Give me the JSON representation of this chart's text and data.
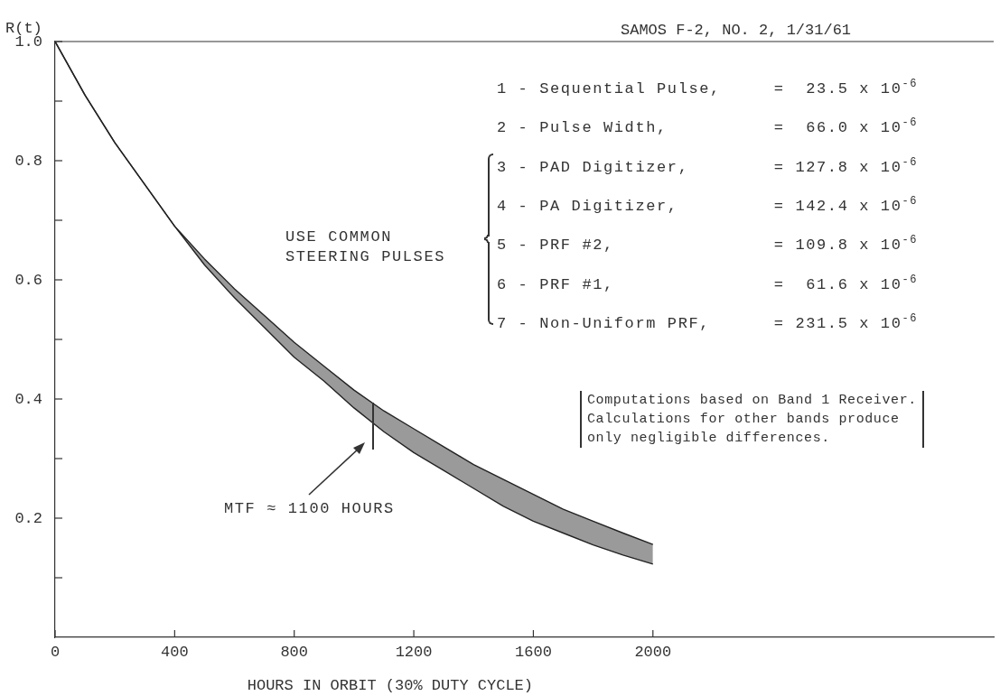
{
  "chart_data": {
    "type": "line",
    "title": "SAMOS F-2, NO. 2, 1/31/61",
    "xlabel": "HOURS IN ORBIT (30% DUTY CYCLE)",
    "ylabel": "R(t)",
    "x": [
      0,
      100,
      200,
      300,
      400,
      500,
      600,
      700,
      800,
      900,
      1000,
      1100,
      1200,
      1300,
      1400,
      1500,
      1600,
      1700,
      1800,
      1900,
      2000
    ],
    "series": [
      {
        "color": "#222222",
        "values": [
          1.0,
          0.91,
          0.83,
          0.76,
          0.69,
          0.625,
          0.57,
          0.52,
          0.47,
          0.43,
          0.385,
          0.345,
          0.31,
          0.28,
          0.25,
          0.22,
          0.195,
          0.175,
          0.155,
          0.138,
          0.123
        ]
      },
      {
        "color": "#222222",
        "values": [
          1.0,
          0.91,
          0.83,
          0.76,
          0.69,
          0.635,
          0.585,
          0.54,
          0.495,
          0.455,
          0.415,
          0.38,
          0.35,
          0.32,
          0.29,
          0.265,
          0.24,
          0.215,
          0.195,
          0.175,
          0.156
        ]
      }
    ],
    "xlim": [
      0,
      3140
    ],
    "xticks": [
      0,
      400,
      800,
      1200,
      1600,
      2000
    ],
    "ylim": [
      0,
      1
    ],
    "yticks": [
      {
        "value": 0.1,
        "label": null
      },
      0.2,
      {
        "value": 0.3,
        "label": null
      },
      0.4,
      {
        "value": 0.5,
        "label": null
      },
      0.6,
      {
        "value": 0.7,
        "label": null
      },
      0.8,
      {
        "value": 0.9,
        "label": null
      },
      {
        "value": 1,
        "label": "1.0"
      }
    ],
    "grid": false,
    "legend": false,
    "marker": "none",
    "line_style": "solid",
    "annotations": [
      "1 - Sequential Pulse,     =  23.5 x 10$^{-6}$",
      "2 - Pulse Width,          =  66.0 x 10$^{-6}$",
      "3 - PAD Digitizer,        = 127.8 x 10$^{-6}$",
      "4 - PA Digitizer,         = 142.4 x 10$^{-6}$",
      "5 - PRF #2,               = 109.8 x 10$^{-6}$",
      "6 - PRF #1,               =  61.6 x 10$^{-6}$",
      "7 - Non-Uniform PRF,      = 231.5 x 10$^{-6}$",
      "USE COMMON\nSTEERING PULSES",
      "Computations based on Band 1 Receiver.\nCalculations for other bands produce\nonly negligible differences.",
      "MTF ≈ 1100 HOURS"
    ]
  }
}
